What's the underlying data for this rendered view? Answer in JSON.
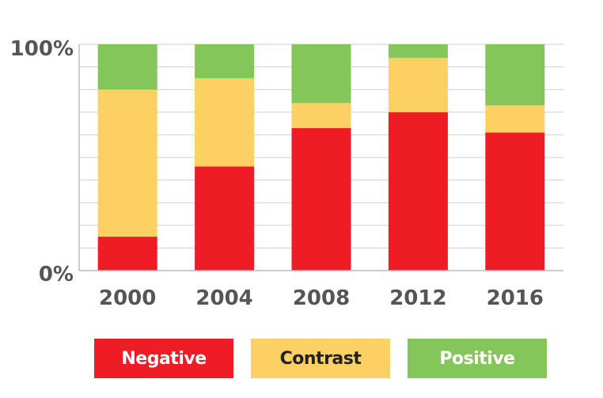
{
  "chart_data": {
    "type": "bar",
    "stacked": true,
    "normalized": true,
    "categories": [
      "2000",
      "2004",
      "2008",
      "2012",
      "2016"
    ],
    "series": [
      {
        "name": "Negative",
        "color": "#ee1c25",
        "values": [
          15,
          46,
          63,
          70,
          61
        ]
      },
      {
        "name": "Contrast",
        "color": "#fdd064",
        "values": [
          65,
          39,
          11,
          24,
          12
        ]
      },
      {
        "name": "Positive",
        "color": "#85c65a",
        "values": [
          20,
          15,
          26,
          6,
          27
        ]
      }
    ],
    "y_tick_labels": [
      "0%",
      "100%"
    ],
    "ylim": [
      0,
      100
    ],
    "grid": true,
    "legend_position": "bottom",
    "legend": [
      {
        "label": "Negative",
        "color": "#ee1c25",
        "text_color": "#ffffff"
      },
      {
        "label": "Contrast",
        "color": "#fdd064",
        "text_color": "#222222"
      },
      {
        "label": "Positive",
        "color": "#85c65a",
        "text_color": "#ffffff"
      }
    ]
  }
}
